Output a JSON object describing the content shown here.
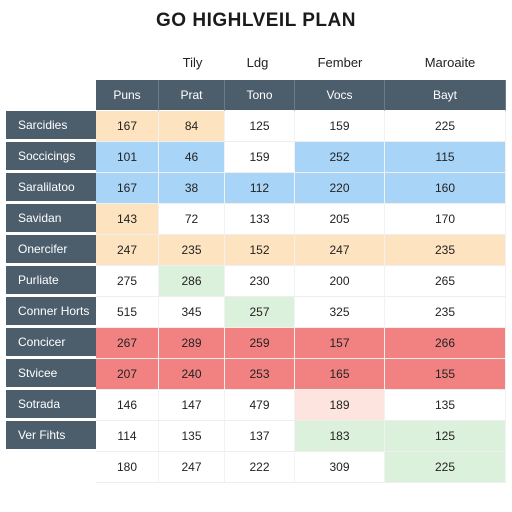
{
  "title": "GO HIGHLVEIL PLAN",
  "top_headers": [
    "Tily",
    "Ldg",
    "Fember",
    "Maroaite"
  ],
  "column_headers": [
    "Puns",
    "Prat",
    "Tono",
    "Vocs",
    "Bayt"
  ],
  "colors": {
    "header": "#4c5d6c",
    "peach": "#fde3bf",
    "blue": "#a8d4f7",
    "green": "#dcf1dc",
    "red": "#f28282",
    "pink": "#fde4df"
  },
  "rows": [
    {
      "label": "Sarcidies",
      "values": [
        "167",
        "84",
        "125",
        "159",
        "225"
      ]
    },
    {
      "label": "Soccicings",
      "values": [
        "101",
        "46",
        "159",
        "252",
        "115"
      ]
    },
    {
      "label": "Saralilatoo",
      "values": [
        "167",
        "38",
        "112",
        "220",
        "160"
      ]
    },
    {
      "label": "Savidan",
      "values": [
        "143",
        "72",
        "133",
        "205",
        "170"
      ]
    },
    {
      "label": "Onercifer",
      "values": [
        "247",
        "235",
        "152",
        "247",
        "235"
      ]
    },
    {
      "label": "Purliate",
      "values": [
        "275",
        "286",
        "230",
        "200",
        "265"
      ]
    },
    {
      "label": "Conner Horts",
      "values": [
        "515",
        "345",
        "257",
        "325",
        "235"
      ]
    },
    {
      "label": "Concicer",
      "values": [
        "267",
        "289",
        "259",
        "157",
        "266"
      ]
    },
    {
      "label": "Stvicee",
      "values": [
        "207",
        "240",
        "253",
        "165",
        "155"
      ]
    },
    {
      "label": "Sotrada",
      "values": [
        "146",
        "147",
        "479",
        "189",
        "135"
      ]
    },
    {
      "label": "Ver Fihts",
      "values": [
        "114",
        "135",
        "137",
        "183",
        "125"
      ]
    },
    {
      "label": "",
      "values": [
        "180",
        "247",
        "222",
        "309",
        "225"
      ]
    }
  ]
}
